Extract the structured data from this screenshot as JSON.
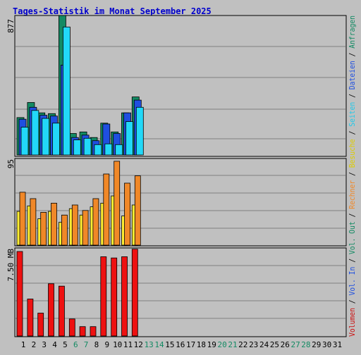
{
  "chart_data": {
    "type": "bar",
    "title": "Tages-Statistik im Monat September 2025",
    "days": [
      "1",
      "2",
      "3",
      "4",
      "5",
      "6",
      "7",
      "8",
      "9",
      "10",
      "11",
      "12",
      "13",
      "14",
      "15",
      "16",
      "17",
      "18",
      "19",
      "20",
      "21",
      "22",
      "23",
      "24",
      "25",
      "26",
      "27",
      "28",
      "29",
      "30",
      "31"
    ],
    "weekend_days": [
      "6",
      "7",
      "13",
      "14",
      "20",
      "21",
      "27",
      "28"
    ],
    "hits_panel": {
      "max_label": "877",
      "ymax": 877,
      "series": [
        {
          "name": "Anfragen",
          "color": "#138a63",
          "values": [
            235,
            330,
            265,
            260,
            877,
            135,
            145,
            110,
            200,
            145,
            265,
            365,
            0,
            0,
            0,
            0,
            0,
            0,
            0,
            0,
            0,
            0,
            0,
            0,
            0,
            0,
            0,
            0,
            0,
            0,
            0
          ]
        },
        {
          "name": "Dateien",
          "color": "#1f4fe0",
          "values": [
            225,
            300,
            250,
            245,
            565,
            110,
            125,
            90,
            195,
            135,
            265,
            345,
            0,
            0,
            0,
            0,
            0,
            0,
            0,
            0,
            0,
            0,
            0,
            0,
            0,
            0,
            0,
            0,
            0,
            0,
            0
          ]
        },
        {
          "name": "Seiten",
          "color": "#22d8f8",
          "values": [
            175,
            280,
            230,
            200,
            805,
            95,
            105,
            65,
            70,
            65,
            210,
            300,
            0,
            0,
            0,
            0,
            0,
            0,
            0,
            0,
            0,
            0,
            0,
            0,
            0,
            0,
            0,
            0,
            0,
            0,
            0
          ]
        }
      ]
    },
    "visits_panel": {
      "max_label": "95",
      "ymax": 95,
      "series": [
        {
          "name": "Besuche",
          "color": "#ffee33",
          "values": [
            37,
            43,
            29,
            37,
            25,
            40,
            33,
            42,
            46,
            54,
            32,
            44,
            0,
            0,
            0,
            0,
            0,
            0,
            0,
            0,
            0,
            0,
            0,
            0,
            0,
            0,
            0,
            0,
            0,
            0,
            0
          ]
        },
        {
          "name": "Rechner",
          "color": "#f08828",
          "values": [
            58,
            51,
            36,
            46,
            33,
            44,
            38,
            51,
            78,
            92,
            68,
            76,
            0,
            0,
            0,
            0,
            0,
            0,
            0,
            0,
            0,
            0,
            0,
            0,
            0,
            0,
            0,
            0,
            0,
            0,
            0
          ]
        }
      ]
    },
    "volume_panel": {
      "max_label": "7.50 MB",
      "ymax": 7.5,
      "series": [
        {
          "name": "Volumen",
          "color": "#ee1111",
          "values": [
            7.2,
            3.15,
            1.95,
            4.45,
            4.25,
            1.45,
            0.8,
            0.8,
            6.75,
            6.65,
            6.75,
            7.4,
            0,
            0,
            0,
            0,
            0,
            0,
            0,
            0,
            0,
            0,
            0,
            0,
            0,
            0,
            0,
            0,
            0,
            0,
            0
          ]
        }
      ]
    },
    "right_legend": [
      {
        "text": "Volumen",
        "color": "#cc1111"
      },
      {
        "text": " / ",
        "color": "#000000"
      },
      {
        "text": "Vol. In",
        "color": "#1f4fe0"
      },
      {
        "text": " / ",
        "color": "#000000"
      },
      {
        "text": "Vol. Out",
        "color": "#138a63"
      },
      {
        "text": " / ",
        "color": "#000000"
      },
      {
        "text": "Rechner",
        "color": "#f08828"
      },
      {
        "text": " / ",
        "color": "#000000"
      },
      {
        "text": "Besuche",
        "color": "#ddcc00"
      },
      {
        "text": " / ",
        "color": "#000000"
      },
      {
        "text": "Seiten",
        "color": "#22c8e8"
      },
      {
        "text": " / ",
        "color": "#000000"
      },
      {
        "text": "Dateien",
        "color": "#1f4fe0"
      },
      {
        "text": " / ",
        "color": "#000000"
      },
      {
        "text": "Anfragen",
        "color": "#138a63"
      }
    ],
    "colors": {
      "title": "#0000cc",
      "weekday_label": "#000000",
      "weekend_label": "#138a63",
      "panel_bg": "#c0c0c0",
      "grid": "#808080"
    }
  }
}
